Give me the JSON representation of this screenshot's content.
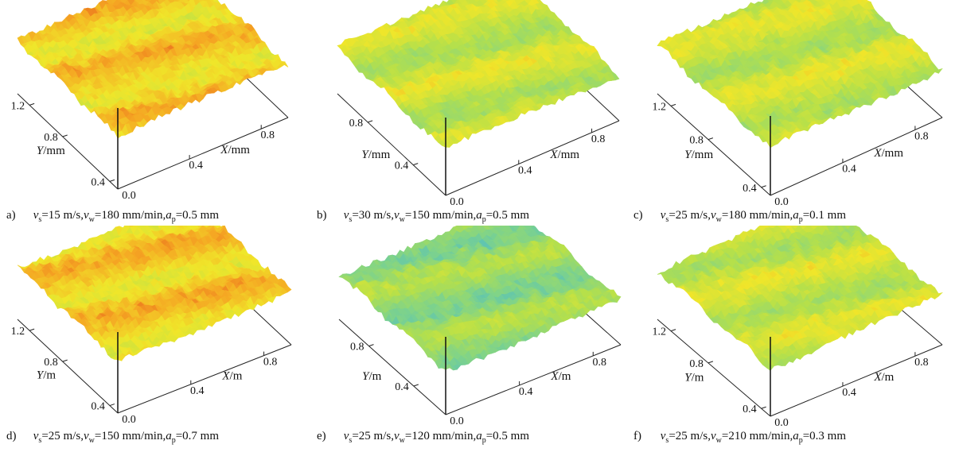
{
  "chart_data": [
    {
      "panel": "a)",
      "type": "surface",
      "caption": {
        "vs": "15",
        "vw": "180",
        "ap": "0.5"
      },
      "xlabel": "X/mm",
      "ylabel": "Y/mm",
      "xticks": [
        "0.0",
        "0.4",
        "0.8"
      ],
      "yticks": [
        "1.2",
        "0.8",
        "0.4"
      ],
      "surface_tone": "warm",
      "colors": [
        "#1d5fc4",
        "#3fb6d8",
        "#7fd38a",
        "#b6e04a",
        "#f0e62a",
        "#f5a623",
        "#e0401a"
      ]
    },
    {
      "panel": "b)",
      "type": "surface",
      "caption": {
        "vs": "30",
        "vw": "150",
        "ap": "0.5"
      },
      "xlabel": "X/mm",
      "ylabel": "Y/mm",
      "xticks": [
        "0.0",
        "0.4",
        "0.8"
      ],
      "yticks": [
        "0.8",
        "0.4"
      ],
      "surface_tone": "mild",
      "colors": [
        "#1d5fc4",
        "#3fb6d8",
        "#7fd38a",
        "#b6e04a",
        "#f0e62a",
        "#f5a623",
        "#e0401a"
      ]
    },
    {
      "panel": "c)",
      "type": "surface",
      "caption": {
        "vs": "25",
        "vw": "180",
        "ap": "0.1"
      },
      "xlabel": "X/mm",
      "ylabel": "Y/mm",
      "xticks": [
        "0.0",
        "0.4",
        "0.8"
      ],
      "yticks": [
        "1.2",
        "0.8",
        "0.4"
      ],
      "surface_tone": "mild",
      "colors": [
        "#1d5fc4",
        "#3fb6d8",
        "#7fd38a",
        "#b6e04a",
        "#f0e62a",
        "#f5a623",
        "#e0401a"
      ]
    },
    {
      "panel": "d)",
      "type": "surface",
      "caption": {
        "vs": "25",
        "vw": "150",
        "ap": "0.7"
      },
      "xlabel": "X/m",
      "ylabel": "Y/m",
      "xticks": [
        "0.0",
        "0.4",
        "0.8"
      ],
      "yticks": [
        "1.2",
        "0.8",
        "0.4"
      ],
      "surface_tone": "warm",
      "colors": [
        "#1d5fc4",
        "#3fb6d8",
        "#7fd38a",
        "#b6e04a",
        "#f0e62a",
        "#f5a623",
        "#e0401a"
      ]
    },
    {
      "panel": "e)",
      "type": "surface",
      "caption": {
        "vs": "25",
        "vw": "120",
        "ap": "0.5"
      },
      "xlabel": "X/m",
      "ylabel": "Y/m",
      "xticks": [
        "0.0",
        "0.4",
        "0.8"
      ],
      "yticks": [
        "0.8",
        "0.4"
      ],
      "surface_tone": "cool",
      "colors": [
        "#1d5fc4",
        "#3fb6d8",
        "#7fd38a",
        "#b6e04a",
        "#f0e62a",
        "#f5a623",
        "#e0401a"
      ]
    },
    {
      "panel": "f)",
      "type": "surface",
      "caption": {
        "vs": "25",
        "vw": "210",
        "ap": "0.3"
      },
      "xlabel": "X/m",
      "ylabel": "Y/m",
      "xticks": [
        "0.0",
        "0.4",
        "0.8"
      ],
      "yticks": [
        "1.2",
        "0.8",
        "0.4"
      ],
      "surface_tone": "mild",
      "colors": [
        "#1d5fc4",
        "#3fb6d8",
        "#7fd38a",
        "#b6e04a",
        "#f0e62a",
        "#f5a623",
        "#e0401a"
      ]
    }
  ],
  "caption_units": {
    "vs_unit": "m/s",
    "vw_unit": "mm/min",
    "ap_unit": "mm"
  }
}
